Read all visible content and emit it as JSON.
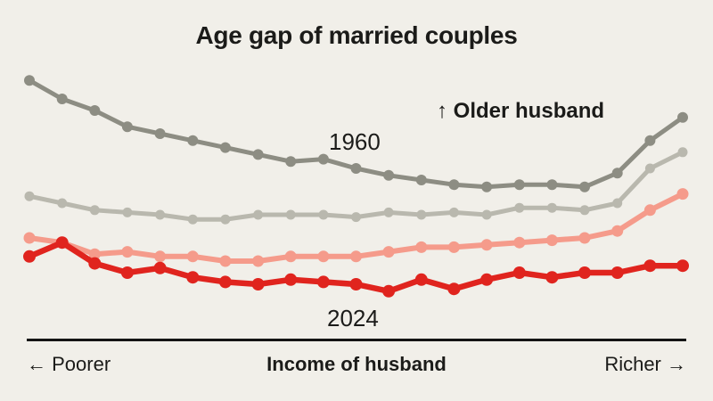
{
  "title": "Age gap of married couples",
  "annotation": "↑ Older husband",
  "series_labels": {
    "top": "1960",
    "bottom": "2024"
  },
  "x_axis": {
    "left": "← Poorer",
    "label": "Income of husband",
    "right": "Richer →"
  },
  "colors": {
    "background": "#f1efe9",
    "text": "#1b1b19",
    "axis_line": "#141414",
    "series_1960": "#8d8d83",
    "series_unlabeled_gray": "#b9b8ae",
    "series_unlabeled_pink": "#f59b8b",
    "series_2024": "#e0241e"
  },
  "chart_data": {
    "type": "line",
    "title": "Age gap of married couples",
    "xlabel": "Income of husband",
    "x_axis_ends": [
      "← Poorer",
      "Richer →"
    ],
    "x": "21 equal income-rank steps of husband, poorest (left) to richest (right)",
    "ylabel": "relative age gap, higher = older husband (no numeric scale shown)",
    "ylim": [
      0,
      100
    ],
    "grid": false,
    "legend": "inline labels: 1960 above top line, 2024 below bottom line; two middle series are unlabeled",
    "annotation": "↑ Older husband",
    "series": [
      {
        "name": "1960",
        "color": "#8d8d83",
        "stroke_width": 5,
        "marker_radius": 6,
        "values": [
          98,
          90,
          85,
          78,
          75,
          72,
          69,
          66,
          63,
          64,
          60,
          57,
          55,
          53,
          52,
          53,
          53,
          52,
          58,
          72,
          82
        ]
      },
      {
        "name": "",
        "color": "#b9b8ae",
        "stroke_width": 5,
        "marker_radius": 5.5,
        "values": [
          48,
          45,
          42,
          41,
          40,
          38,
          38,
          40,
          40,
          40,
          39,
          41,
          40,
          41,
          40,
          43,
          43,
          42,
          45,
          60,
          67
        ]
      },
      {
        "name": "",
        "color": "#f59b8b",
        "stroke_width": 6,
        "marker_radius": 6.5,
        "values": [
          30,
          28,
          23,
          24,
          22,
          22,
          20,
          20,
          22,
          22,
          22,
          24,
          26,
          26,
          27,
          28,
          29,
          30,
          33,
          42,
          49
        ]
      },
      {
        "name": "2024",
        "color": "#e0241e",
        "stroke_width": 6.5,
        "marker_radius": 7,
        "values": [
          22,
          28,
          19,
          15,
          17,
          13,
          11,
          10,
          12,
          11,
          10,
          7,
          12,
          8,
          12,
          15,
          13,
          15,
          15,
          18,
          18
        ]
      }
    ]
  }
}
